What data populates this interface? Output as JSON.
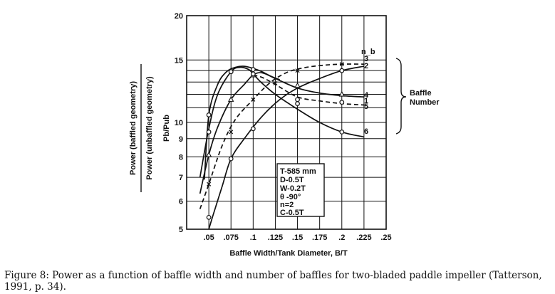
{
  "caption": "Figure 8: Power as a function of baffle width and number of baffles for two-bladed paddle impeller (Tatterson, 1991, p. 34).",
  "chart_data": {
    "type": "line",
    "xlabel": "Baffle Width/Tank Diameter, B/T",
    "ylabel_outer_top": "Power (baffled geometry)",
    "ylabel_outer_bottom": "Power (unbaffled geometry)",
    "ylabel_inner": "Pb/Pub",
    "xlim": [
      0.025,
      0.25
    ],
    "ylim": [
      5,
      20
    ],
    "y_scale": "log",
    "x_ticks": [
      ".05",
      ".075",
      ".1",
      ".125",
      ".15",
      ".175",
      ".2",
      ".225",
      ".25"
    ],
    "x_tick_values": [
      0.05,
      0.075,
      0.1,
      0.125,
      0.15,
      0.175,
      0.2,
      0.225,
      0.25
    ],
    "y_ticks": [
      "5",
      "6",
      "7",
      "8",
      "9",
      "10",
      "15",
      "20"
    ],
    "y_tick_values": [
      5,
      6,
      7,
      8,
      9,
      10,
      15,
      20
    ],
    "grid": true,
    "legend_title": "n_b",
    "bracket_label": [
      "Baffle",
      "Number"
    ],
    "series": [
      {
        "name": "3",
        "dashed": false,
        "marker": "circle",
        "x": [
          0.045,
          0.05,
          0.06,
          0.07,
          0.08,
          0.09,
          0.1,
          0.11,
          0.12,
          0.13
        ],
        "y": [
          6.9,
          10.5,
          12.8,
          13.9,
          14.3,
          14.4,
          14.2,
          13.9,
          13.5,
          13.2
        ],
        "points_x": [
          0.05,
          0.075,
          0.1
        ],
        "points_y": [
          10.5,
          13.9,
          14.1
        ]
      },
      {
        "name": "2",
        "dashed": false,
        "marker": "circle",
        "x": [
          0.05,
          0.055,
          0.065,
          0.075,
          0.09,
          0.11,
          0.13,
          0.15,
          0.175,
          0.2,
          0.225
        ],
        "y": [
          5.0,
          5.5,
          6.6,
          7.9,
          9.0,
          10.4,
          11.6,
          12.5,
          13.3,
          14.0,
          14.4
        ],
        "points_x": [
          0.05,
          0.075,
          0.1,
          0.2
        ],
        "points_y": [
          5.4,
          7.9,
          9.6,
          14.0
        ]
      },
      {
        "name": "4",
        "dashed": false,
        "marker": "triangle",
        "x": [
          0.04,
          0.05,
          0.06,
          0.075,
          0.09,
          0.1,
          0.11,
          0.125,
          0.15,
          0.175,
          0.2,
          0.225
        ],
        "y": [
          6.3,
          8.1,
          9.7,
          11.6,
          12.8,
          13.6,
          13.8,
          13.3,
          12.5,
          12.1,
          11.9,
          11.8
        ],
        "points_x": [
          0.05,
          0.075,
          0.1,
          0.15,
          0.2
        ],
        "points_y": [
          8.1,
          11.6,
          13.6,
          12.7,
          12.0
        ]
      },
      {
        "name": "5",
        "dashed": true,
        "marker": "circle",
        "x": [
          0.1,
          0.11,
          0.125,
          0.15,
          0.175,
          0.2,
          0.225
        ],
        "y": [
          13.6,
          13.4,
          12.8,
          11.8,
          11.5,
          11.3,
          11.2
        ],
        "points_x": [
          0.15,
          0.2
        ],
        "points_y": [
          11.6,
          11.4
        ]
      },
      {
        "name": "1",
        "dashed": true,
        "marker": "x",
        "x": [
          0.04,
          0.05,
          0.065,
          0.08,
          0.1,
          0.12,
          0.14,
          0.16,
          0.18,
          0.2,
          0.225
        ],
        "y": [
          5.7,
          6.7,
          8.6,
          10.2,
          11.6,
          13.0,
          13.9,
          14.3,
          14.5,
          14.6,
          14.6
        ],
        "points_x": [
          0.05,
          0.075,
          0.1,
          0.125,
          0.15,
          0.2
        ],
        "points_y": [
          6.7,
          9.4,
          11.6,
          12.9,
          14.0,
          14.6
        ]
      },
      {
        "name": "6",
        "dashed": false,
        "marker": "circle",
        "x": [
          0.04,
          0.05,
          0.06,
          0.075,
          0.085,
          0.095,
          0.1,
          0.11,
          0.125,
          0.15,
          0.175,
          0.2,
          0.225
        ],
        "y": [
          7.0,
          9.6,
          12.0,
          13.9,
          14.3,
          14.1,
          13.7,
          12.9,
          12.0,
          10.9,
          10.0,
          9.4,
          9.1
        ],
        "points_x": [
          0.05,
          0.075,
          0.1,
          0.15,
          0.2
        ],
        "points_y": [
          9.4,
          13.9,
          13.7,
          11.3,
          9.4
        ]
      }
    ],
    "legend_lines": [
      "T-585 mm",
      "D-0.5T",
      "W-0.2T",
      "θ -90°",
      "n=2",
      "C-0.5T"
    ]
  }
}
